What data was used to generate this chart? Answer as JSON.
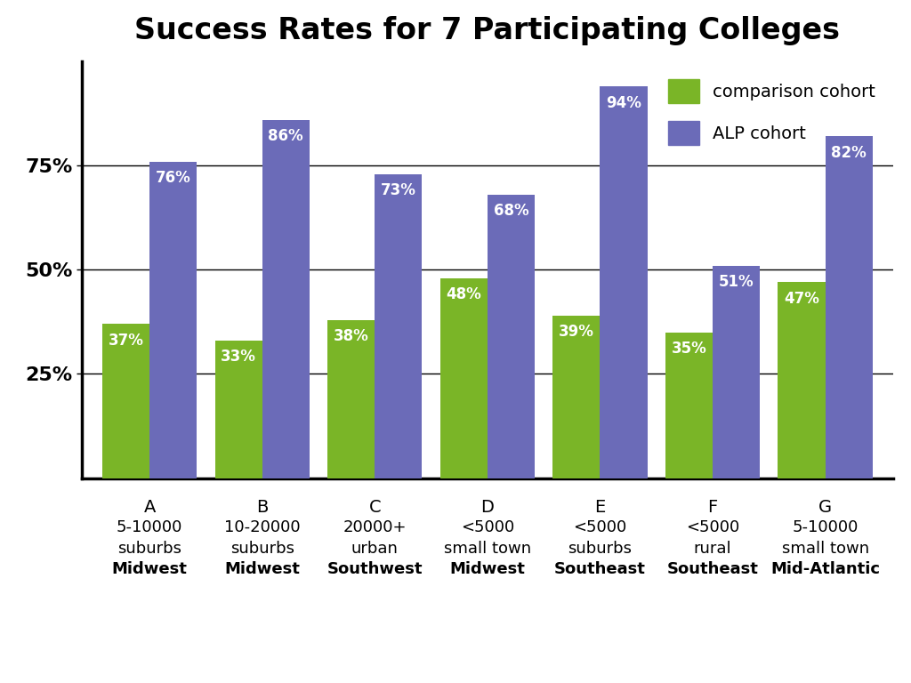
{
  "title": "Success Rates for 7 Participating Colleges",
  "title_fontsize": 24,
  "title_fontweight": "bold",
  "colleges": [
    "A",
    "B",
    "C",
    "D",
    "E",
    "F",
    "G"
  ],
  "x_labels_line1": [
    "A",
    "B",
    "C",
    "D",
    "E",
    "F",
    "G"
  ],
  "x_labels_line2": [
    "5-10000",
    "10-20000",
    "20000+",
    "<5000",
    "<5000",
    "<5000",
    "5-10000"
  ],
  "x_labels_line3": [
    "suburbs",
    "suburbs",
    "urban",
    "small town",
    "suburbs",
    "rural",
    "small town"
  ],
  "x_labels_line4": [
    "Midwest",
    "Midwest",
    "Southwest",
    "Midwest",
    "Southeast",
    "Southeast",
    "Mid-Atlantic"
  ],
  "comparison_values": [
    37,
    33,
    38,
    48,
    39,
    35,
    47
  ],
  "alp_values": [
    76,
    86,
    73,
    68,
    94,
    51,
    82
  ],
  "comparison_color": "#7ab527",
  "alp_color": "#6b6bb8",
  "comparison_label": "comparison cohort",
  "alp_label": "ALP cohort",
  "ytick_positions": [
    25,
    50,
    75
  ],
  "ytick_labels": [
    "25%",
    "50%",
    "75%"
  ],
  "ylim": [
    0,
    100
  ],
  "bar_width": 0.42,
  "value_fontsize": 12,
  "value_color": "white",
  "legend_fontsize": 14,
  "background_color": "white",
  "grid_color": "black",
  "label_fontsize": 13,
  "legend_patch_size": 20
}
